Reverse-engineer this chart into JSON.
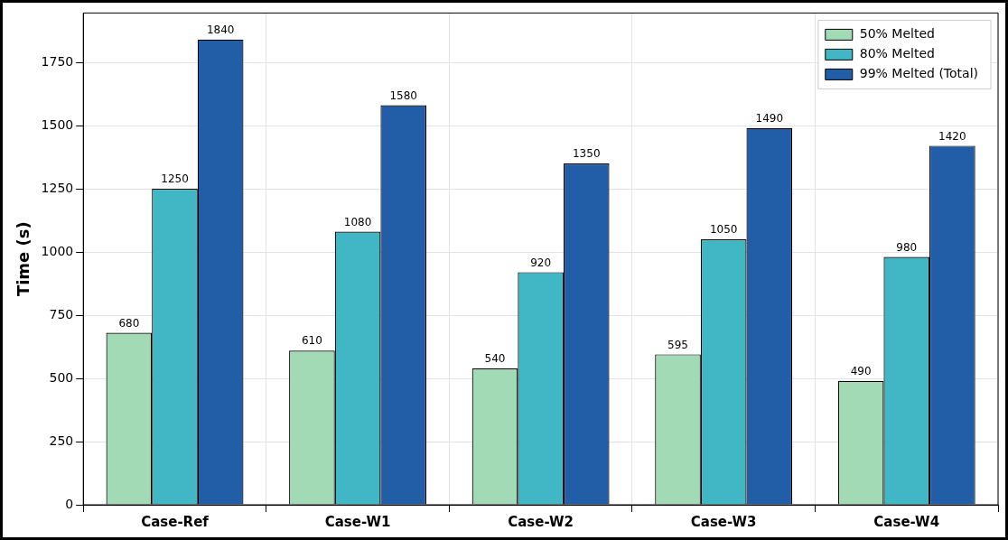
{
  "chart_data": {
    "type": "bar",
    "ylabel": "Time (s)",
    "categories": [
      "Case-Ref",
      "Case-W1",
      "Case-W2",
      "Case-W3",
      "Case-W4"
    ],
    "series": [
      {
        "name": "50% Melted",
        "color": "#a1dab4",
        "values": [
          680,
          610,
          540,
          595,
          490
        ]
      },
      {
        "name": "80% Melted",
        "color": "#41b6c4",
        "values": [
          1250,
          1080,
          920,
          1050,
          980
        ]
      },
      {
        "name": "99% Melted (Total)",
        "color": "#225ea8",
        "values": [
          1840,
          1580,
          1350,
          1490,
          1420
        ]
      }
    ],
    "ylim": [
      0,
      1945
    ],
    "yticks": [
      0,
      250,
      500,
      750,
      1000,
      1250,
      1500,
      1750
    ],
    "grid": true,
    "legend": "top right",
    "data_labels": true
  }
}
